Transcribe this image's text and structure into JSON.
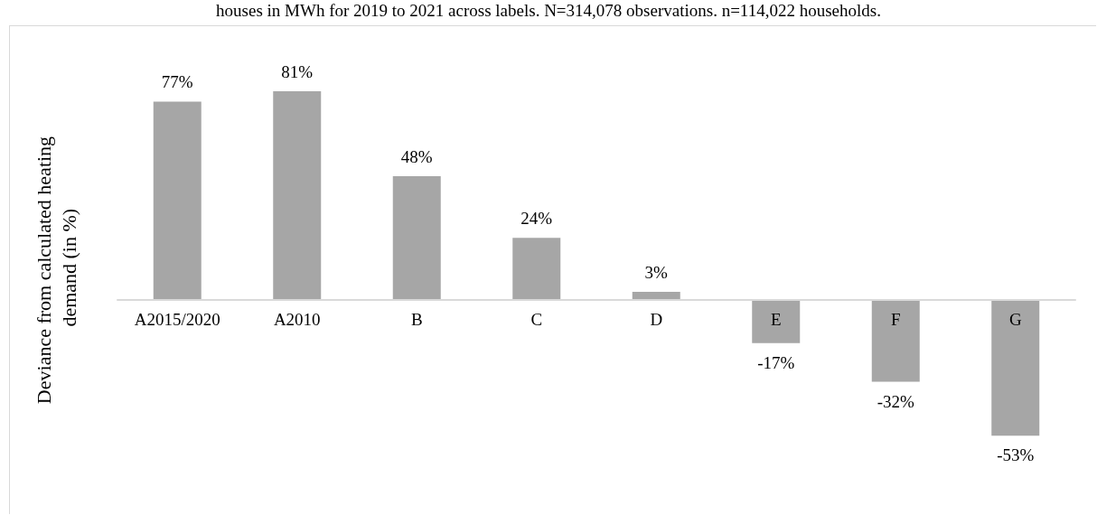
{
  "chart_data": {
    "type": "bar",
    "ylabel": "Deviance from calculated heating demand (in %)",
    "annotations": [
      "houses in MWh for 2019 to 2021 across labels. N=314,078 observations. n=114,022 households."
    ],
    "categories": [
      "A2015/2020",
      "A2010",
      "B",
      "C",
      "D",
      "E",
      "F",
      "G"
    ],
    "values": [
      77,
      81,
      48,
      24,
      3,
      -17,
      -32,
      -53
    ],
    "value_labels": [
      "77%",
      "81%",
      "48%",
      "24%",
      "3%",
      "-17%",
      "-32%",
      "-53%"
    ],
    "color": "#a6a6a6",
    "grid": false
  }
}
